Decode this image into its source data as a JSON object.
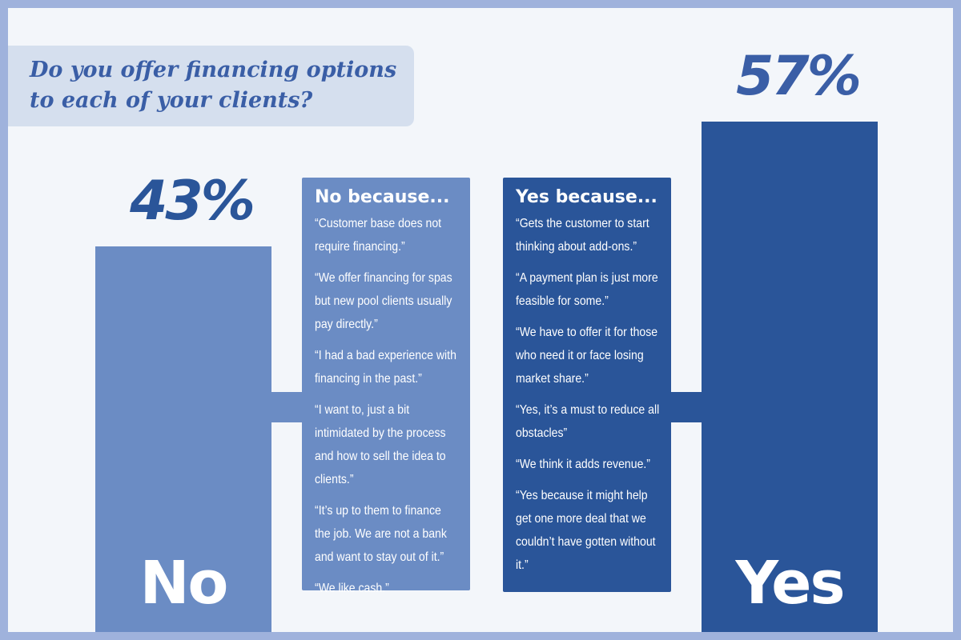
{
  "colors": {
    "no": "#6b8cc4",
    "yes": "#2a5599",
    "title": "#3a5ea6",
    "background": "#f3f6fa",
    "border": "#9fb2dc"
  },
  "chart_data": {
    "type": "bar",
    "title": "Do you offer financing options to each of your clients?",
    "categories": [
      "No",
      "Yes"
    ],
    "values": [
      43,
      57
    ],
    "value_labels": [
      "43%",
      "57%"
    ],
    "ylim": [
      0,
      100
    ],
    "grid": false
  },
  "no_box": {
    "heading": "No because...",
    "quotes": [
      "“Customer base does not require financing.”",
      "“We offer financing for spas but new pool clients usually pay directly.”",
      "“I had a bad experience with financing in the past.”",
      "“I want to, just a bit intimidated by the process and how to sell the idea to clients.”",
      "“It’s up to them to finance the job. We are not a bank and want to stay out of it.”",
      "“We like cash.”"
    ]
  },
  "yes_box": {
    "heading": "Yes because...",
    "quotes": [
      "“Gets the customer to start thinking about add-ons.”",
      "“A payment plan is just more feasible for some.”",
      "“We have to offer it for those who need it or face losing market share.”",
      "“Yes, it’s a must to reduce all obstacles”",
      "“We think it adds revenue.”",
      "“Yes because it might help get one more deal that we couldn’t have gotten without it.”"
    ]
  }
}
